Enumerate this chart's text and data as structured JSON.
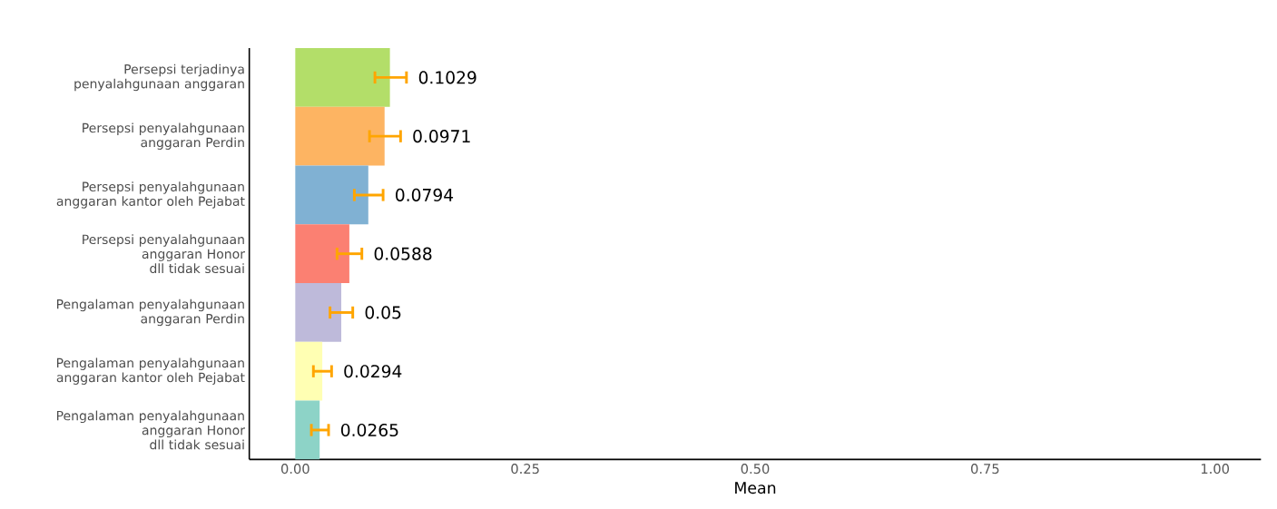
{
  "chart_data": {
    "type": "bar",
    "orientation": "horizontal",
    "xlabel": "Mean",
    "categories": [
      "Persepsi terjadinya penyalahgunaan anggaran",
      "Persepsi penyalahgunaan anggaran Perdin",
      "Persepsi penyalahgunaan anggaran kantor oleh Pejabat",
      "Persepsi penyalahgunaan anggaran Honor dll tidak sesuai",
      "Pengalaman penyalahgunaan anggaran Perdin",
      "Pengalaman penyalahgunaan anggaran kantor oleh Pejabat",
      "Pengalaman penyalahgunaan anggaran Honor dll tidak sesuai"
    ],
    "values": [
      0.1029,
      0.0971,
      0.0794,
      0.0588,
      0.05,
      0.0294,
      0.0265
    ],
    "colors": [
      "#b3de69",
      "#fdb462",
      "#80b1d3",
      "#fb8072",
      "#bebada",
      "#ffffb3",
      "#8dd3c7"
    ],
    "errors": [
      [
        0.0866,
        0.1209
      ],
      [
        0.0807,
        0.1145
      ],
      [
        0.0642,
        0.0955
      ],
      [
        0.0454,
        0.0724
      ],
      [
        0.0378,
        0.0625
      ],
      [
        0.0197,
        0.0395
      ],
      [
        0.0175,
        0.0362
      ]
    ],
    "value_labels": [
      "0.1029",
      "0.0971",
      "0.0794",
      "0.0588",
      "0.05",
      "0.0294",
      "0.0265"
    ],
    "xlim": [
      -0.05,
      1.05
    ],
    "xticks": [
      {
        "value": 0,
        "label": "0.00"
      },
      {
        "value": 0.25,
        "label": "0.25"
      },
      {
        "value": 0.5,
        "label": "0.50"
      },
      {
        "value": 0.75,
        "label": "0.75"
      },
      {
        "value": 1,
        "label": "1.00"
      }
    ],
    "grid": false
  }
}
